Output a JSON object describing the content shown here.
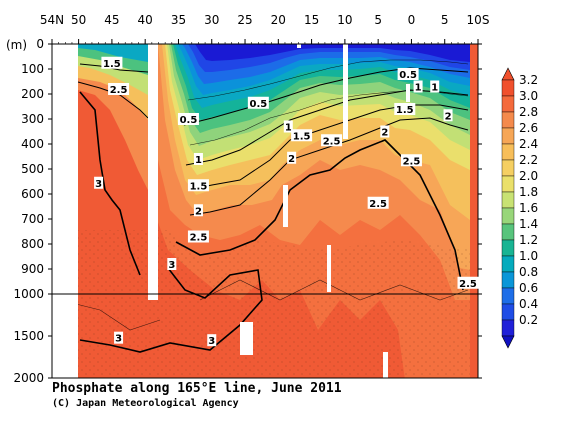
{
  "chart_data": {
    "type": "heatmap",
    "title": "Phosphate along 165°E line, June 2011",
    "credit": "(C) Japan Meteorological Agency",
    "ylabel": "(m)",
    "x_ticks": [
      "54N",
      "50",
      "45",
      "40",
      "35",
      "30",
      "25",
      "20",
      "15",
      "10",
      "5",
      "0",
      "5",
      "10S"
    ],
    "x_tick_values": [
      54,
      50,
      45,
      40,
      35,
      30,
      25,
      20,
      15,
      10,
      5,
      0,
      -5,
      -10
    ],
    "xlim": [
      54,
      -10
    ],
    "y_ticks_upper": [
      "0",
      "100",
      "200",
      "300",
      "400",
      "500",
      "600",
      "700",
      "800",
      "900",
      "1000"
    ],
    "y_ticks_lower": [
      "1000",
      "1500",
      "2000"
    ],
    "y_tick_values_upper": [
      0,
      100,
      200,
      300,
      400,
      500,
      600,
      700,
      800,
      900,
      1000
    ],
    "y_tick_values_lower": [
      1000,
      1500,
      2000
    ],
    "ylim": [
      0,
      2000
    ],
    "y_scale_break": 1000,
    "colorbar": {
      "labels": [
        "3.2",
        "3.0",
        "2.8",
        "2.6",
        "2.4",
        "2.2",
        "2.0",
        "1.8",
        "1.6",
        "1.4",
        "1.2",
        "1.0",
        "0.8",
        "0.6",
        "0.4",
        "0.2"
      ],
      "values": [
        3.2,
        3.0,
        2.8,
        2.6,
        2.4,
        2.2,
        2.0,
        1.8,
        1.6,
        1.4,
        1.2,
        1.0,
        0.8,
        0.6,
        0.4,
        0.2
      ],
      "colors": [
        "#f0502d",
        "#f46a3c",
        "#f48a4c",
        "#f6a656",
        "#f7be5a",
        "#f5cf62",
        "#eae06a",
        "#c8e273",
        "#98d67a",
        "#58c47c",
        "#18b493",
        "#05abbd",
        "#0a96d8",
        "#1e6ee8",
        "#1f4de6",
        "#2020d8"
      ],
      "low_cap_color": "#1010c0",
      "high_cap_color": "#f0502d"
    },
    "contour_labels": [
      {
        "text": "1.5",
        "lat": 45,
        "depth": 75
      },
      {
        "text": "2.5",
        "lat": 44,
        "depth": 180
      },
      {
        "text": "3",
        "lat": 47,
        "depth": 555
      },
      {
        "text": "0.5",
        "lat": 33.5,
        "depth": 300
      },
      {
        "text": "1",
        "lat": 32,
        "depth": 460
      },
      {
        "text": "1.5",
        "lat": 32,
        "depth": 565
      },
      {
        "text": "2",
        "lat": 32,
        "depth": 665
      },
      {
        "text": "2.5",
        "lat": 32,
        "depth": 770
      },
      {
        "text": "3",
        "lat": 36,
        "depth": 880
      },
      {
        "text": "0.5",
        "lat": 23,
        "depth": 235
      },
      {
        "text": "1",
        "lat": 18.5,
        "depth": 330
      },
      {
        "text": "1.5",
        "lat": 16.5,
        "depth": 365
      },
      {
        "text": "2",
        "lat": 18,
        "depth": 455
      },
      {
        "text": "2.5",
        "lat": 12,
        "depth": 385
      },
      {
        "text": "0.5",
        "lat": 0.5,
        "depth": 120
      },
      {
        "text": "1",
        "lat": -1,
        "depth": 170
      },
      {
        "text": "1.5",
        "lat": 1,
        "depth": 260
      },
      {
        "text": "2",
        "lat": 4,
        "depth": 350
      },
      {
        "text": "1",
        "lat": -3.5,
        "depth": 170
      },
      {
        "text": "2",
        "lat": -5.5,
        "depth": 285
      },
      {
        "text": "2.5",
        "lat": 0,
        "depth": 465
      },
      {
        "text": "2.5",
        "lat": 5,
        "depth": 635
      },
      {
        "text": "2.5",
        "lat": -8.5,
        "depth": 955
      },
      {
        "text": "3",
        "lat": 44,
        "depth": 1520
      },
      {
        "text": "3",
        "lat": 30,
        "depth": 1550
      }
    ],
    "grid": false,
    "legend": "right"
  }
}
